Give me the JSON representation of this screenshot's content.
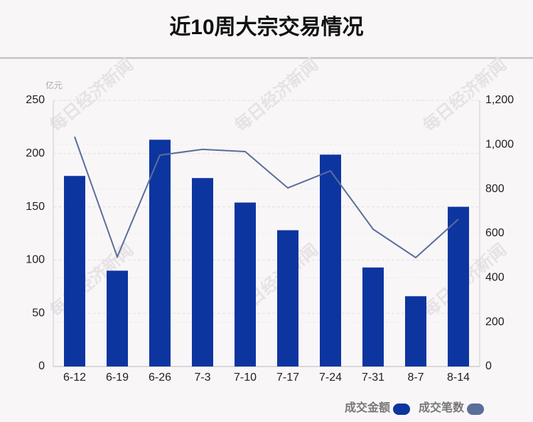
{
  "chart_data": {
    "type": "bar_line",
    "title": "近10周大宗交易情况",
    "y_unit": "亿元",
    "watermark": "每日经济新闻",
    "categories": [
      "6-12",
      "6-19",
      "6-26",
      "7-3",
      "7-10",
      "7-17",
      "7-24",
      "7-31",
      "8-7",
      "8-14"
    ],
    "series": [
      {
        "name": "成交金额",
        "color": "#0d35a0",
        "type": "bar",
        "values": [
          179,
          90,
          213,
          177,
          154,
          128,
          199,
          93,
          66,
          150
        ]
      },
      {
        "name": "成交笔数",
        "color": "#5a6e9a",
        "type": "line",
        "axis": "y2",
        "values": [
          1036,
          494,
          953,
          979,
          969,
          805,
          882,
          619,
          491,
          664
        ]
      }
    ],
    "ylim": [
      0,
      250
    ],
    "yticks": [
      0,
      50,
      100,
      150,
      200,
      250
    ],
    "y2lim": [
      0,
      1200
    ],
    "y2ticks": [
      0,
      200,
      400,
      600,
      800,
      {
        "value": 1000,
        "label": "1,000"
      },
      {
        "value": 1200,
        "label": "1,200"
      }
    ],
    "grid": true
  }
}
